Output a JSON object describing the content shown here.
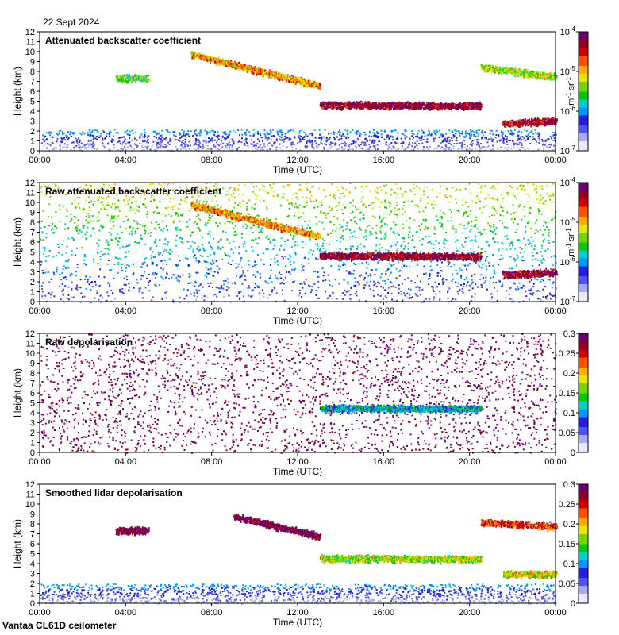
{
  "date": "22 Sept 2024",
  "footer": "Vantaa CL61D ceilometer",
  "colors": {
    "scale": [
      "#e8e8ff",
      "#a8a8f8",
      "#5050f0",
      "#2020d8",
      "#0096ff",
      "#00d2c8",
      "#00c800",
      "#7ad200",
      "#e6e600",
      "#ffaa00",
      "#ff5000",
      "#d00000",
      "#900020",
      "#6a006a"
    ],
    "background": "#ffffff"
  },
  "chart_data": [
    {
      "type": "heatmap",
      "title": "Attenuated backscatter coefficient",
      "xlabel": "Time (UTC)",
      "ylabel": "Height (km)",
      "xticks": [
        "00:00",
        "04:00",
        "08:00",
        "12:00",
        "16:00",
        "20:00",
        "00:00"
      ],
      "xlim": [
        0,
        24
      ],
      "ylim": [
        0,
        12
      ],
      "yticks": [
        0,
        1,
        2,
        3,
        4,
        5,
        6,
        7,
        8,
        9,
        10,
        11,
        12
      ],
      "colorbar": {
        "scale": "log",
        "min": 1e-07,
        "max": 0.0001,
        "labels": [
          "10^-7",
          "10^-6",
          "10^-5",
          "10^-4"
        ],
        "label_lead": "m",
        "label_mid": " sr",
        "unit_exp1": "-1",
        "unit_exp2": "-1"
      },
      "features": [
        {
          "name": "boundary layer",
          "t0": 0,
          "t1": 24,
          "h0": 0,
          "h1": 2.2,
          "level": 0.18
        },
        {
          "name": "upper cloud",
          "t0": 7,
          "t1": 13,
          "h0": 9.8,
          "h1": 6.6,
          "level": 0.68
        },
        {
          "name": "mid cloud",
          "t0": 13,
          "t1": 20.5,
          "h0": 4.7,
          "h1": 4.6,
          "level": 0.92
        },
        {
          "name": "low cloud",
          "t0": 21.5,
          "t1": 24,
          "h0": 2.8,
          "h1": 3.1,
          "level": 0.88
        },
        {
          "name": "thin layer",
          "t0": 3.5,
          "t1": 5,
          "h0": 7.4,
          "h1": 7.4,
          "level": 0.5
        },
        {
          "name": "late cloud",
          "t0": 20.5,
          "t1": 24,
          "h0": 8.5,
          "h1": 7.5,
          "level": 0.55
        }
      ]
    },
    {
      "type": "heatmap",
      "title": "Raw attenuated backscatter coefficient",
      "xlabel": "Time (UTC)",
      "ylabel": "Height (km)",
      "xticks": [
        "00:00",
        "04:00",
        "08:00",
        "12:00",
        "16:00",
        "20:00",
        "00:00"
      ],
      "xlim": [
        0,
        24
      ],
      "ylim": [
        0,
        12
      ],
      "yticks": [
        0,
        1,
        2,
        3,
        4,
        5,
        6,
        7,
        8,
        9,
        10,
        11,
        12
      ],
      "colorbar": {
        "scale": "log",
        "min": 1e-07,
        "max": 0.0001,
        "labels": [
          "10^-7",
          "10^-6",
          "10^-5",
          "10^-4"
        ],
        "label_lead": "m",
        "label_mid": " sr",
        "unit_exp1": "-1",
        "unit_exp2": "-1"
      },
      "features": [
        {
          "name": "noise field",
          "t0": 0,
          "t1": 24,
          "h0": 0,
          "h1": 12,
          "level": 0.3
        },
        {
          "name": "upper cloud",
          "t0": 7,
          "t1": 13,
          "h0": 9.8,
          "h1": 6.6,
          "level": 0.68
        },
        {
          "name": "mid cloud",
          "t0": 13,
          "t1": 20.5,
          "h0": 4.7,
          "h1": 4.6,
          "level": 0.92
        },
        {
          "name": "low cloud",
          "t0": 21.5,
          "t1": 24,
          "h0": 2.8,
          "h1": 3.0,
          "level": 0.9
        }
      ]
    },
    {
      "type": "heatmap",
      "title": "Raw depolarisation",
      "xlabel": "Time (UTC)",
      "ylabel": "Height (km)",
      "xticks": [
        "00:00",
        "04:00",
        "08:00",
        "12:00",
        "16:00",
        "20:00",
        "00:00"
      ],
      "xlim": [
        0,
        24
      ],
      "ylim": [
        0,
        12
      ],
      "yticks": [
        0,
        1,
        2,
        3,
        4,
        5,
        6,
        7,
        8,
        9,
        10,
        11,
        12
      ],
      "colorbar": {
        "scale": "linear",
        "min": 0,
        "max": 0.3,
        "labels": [
          "0",
          "0.05",
          "0.1",
          "0.15",
          "0.2",
          "0.25",
          "0.3"
        ]
      },
      "features": [
        {
          "name": "noise field",
          "t0": 0,
          "t1": 24,
          "h0": 0,
          "h1": 12,
          "level": 0.97
        },
        {
          "name": "mid cloud",
          "t0": 13,
          "t1": 20.5,
          "h0": 4.5,
          "h1": 4.5,
          "level": 0.35
        }
      ]
    },
    {
      "type": "heatmap",
      "title": "Smoothed lidar depolarisation",
      "xlabel": "Time (UTC)",
      "ylabel": "Height (km)",
      "xticks": [
        "00:00",
        "04:00",
        "08:00",
        "12:00",
        "16:00",
        "20:00",
        "00:00"
      ],
      "xlim": [
        0,
        24
      ],
      "ylim": [
        0,
        12
      ],
      "yticks": [
        0,
        1,
        2,
        3,
        4,
        5,
        6,
        7,
        8,
        9,
        10,
        11,
        12
      ],
      "colorbar": {
        "scale": "linear",
        "min": 0,
        "max": 0.3,
        "labels": [
          "0",
          "0.05",
          "0.1",
          "0.15",
          "0.2",
          "0.25",
          "0.3"
        ]
      },
      "features": [
        {
          "name": "boundary layer",
          "t0": 0,
          "t1": 24,
          "h0": 0,
          "h1": 2.0,
          "level": 0.2
        },
        {
          "name": "upper cloud",
          "t0": 9,
          "t1": 13,
          "h0": 8.8,
          "h1": 6.8,
          "level": 0.97
        },
        {
          "name": "mid cloud",
          "t0": 13,
          "t1": 20.5,
          "h0": 4.6,
          "h1": 4.5,
          "level": 0.55
        },
        {
          "name": "low cloud",
          "t0": 21.5,
          "t1": 24,
          "h0": 3.0,
          "h1": 3.0,
          "level": 0.6
        },
        {
          "name": "thin layer",
          "t0": 3.5,
          "t1": 5,
          "h0": 7.4,
          "h1": 7.4,
          "level": 0.97
        },
        {
          "name": "late cloud",
          "t0": 20.5,
          "t1": 24,
          "h0": 8.2,
          "h1": 7.8,
          "level": 0.8
        }
      ]
    }
  ]
}
